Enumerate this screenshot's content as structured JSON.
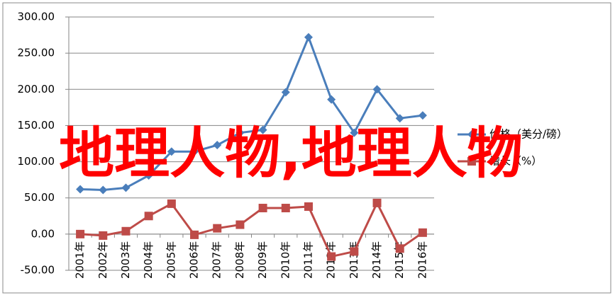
{
  "chart_data": {
    "type": "line",
    "categories": [
      "2001年",
      "2002年",
      "2003年",
      "2004年",
      "2005年",
      "2006年",
      "2007年",
      "2008年",
      "2009年",
      "2010年",
      "2011年",
      "2012年",
      "2013年",
      "2014年",
      "2015年",
      "2016年"
    ],
    "series": [
      {
        "name": "价格（美分/磅）",
        "color": "#4a7ebb",
        "marker": "diamond",
        "values": [
          62,
          61,
          64,
          81,
          114,
          114,
          123,
          140,
          144,
          196,
          272,
          186,
          140,
          200,
          160,
          164
        ]
      },
      {
        "name": "增长（%）",
        "color": "#be4b48",
        "marker": "square",
        "values": [
          0,
          -2,
          4,
          25,
          42,
          -1,
          8,
          13,
          36,
          36,
          38,
          -31,
          -24,
          43,
          -20,
          2
        ]
      }
    ],
    "ylim": [
      -50,
      300
    ],
    "yticks": [
      {
        "value": -50,
        "label": "-50.00"
      },
      {
        "value": 0,
        "label": "0.00"
      },
      {
        "value": 50,
        "label": "50.00"
      },
      {
        "value": 100,
        "label": "100.00"
      },
      {
        "value": 150,
        "label": "150.00"
      },
      {
        "value": 200,
        "label": "200.00"
      },
      {
        "value": 250,
        "label": "250.00"
      },
      {
        "value": 300,
        "label": "300.00"
      }
    ],
    "grid": true,
    "legend": "right",
    "annotations": [
      "地理人物,地理人物"
    ]
  }
}
